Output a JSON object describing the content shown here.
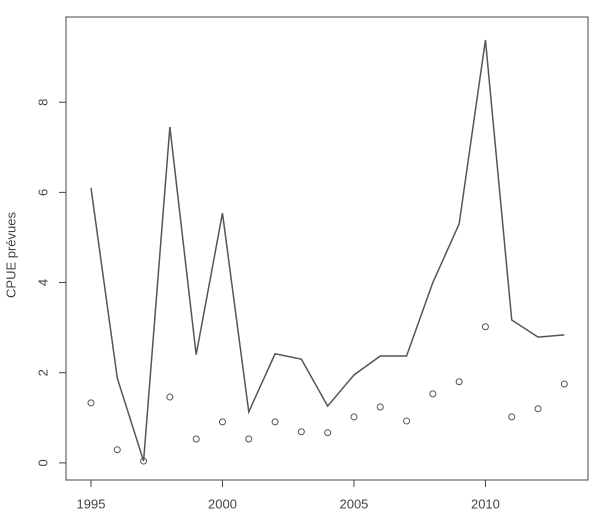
{
  "chart_data": {
    "type": "line-points",
    "y_label": "CPUE prévues",
    "x": [
      1995,
      1996,
      1997,
      1998,
      1999,
      2000,
      2001,
      2002,
      2003,
      2004,
      2005,
      2006,
      2007,
      2008,
      2009,
      2010,
      2011,
      2012,
      2013
    ],
    "series": [
      {
        "style": "line",
        "color": "#555555",
        "values": [
          6.1,
          1.88,
          0.04,
          7.45,
          2.4,
          5.54,
          1.13,
          2.42,
          2.3,
          1.26,
          1.95,
          2.37,
          2.37,
          4.0,
          5.3,
          9.38,
          3.17,
          2.79,
          2.84
        ]
      },
      {
        "style": "points",
        "color": "#555555",
        "values": [
          1.33,
          0.29,
          0.04,
          1.46,
          0.53,
          0.91,
          0.53,
          0.91,
          0.69,
          0.67,
          1.02,
          1.24,
          0.93,
          1.53,
          1.8,
          3.02,
          1.02,
          1.2,
          1.75
        ]
      }
    ],
    "xlim": [
      1994.05,
      2013.9
    ],
    "xticks": [
      1995,
      2000,
      2005,
      2010
    ],
    "ylim": [
      -0.38,
      9.89
    ],
    "yticks": [
      0,
      2,
      4,
      6,
      8
    ]
  }
}
